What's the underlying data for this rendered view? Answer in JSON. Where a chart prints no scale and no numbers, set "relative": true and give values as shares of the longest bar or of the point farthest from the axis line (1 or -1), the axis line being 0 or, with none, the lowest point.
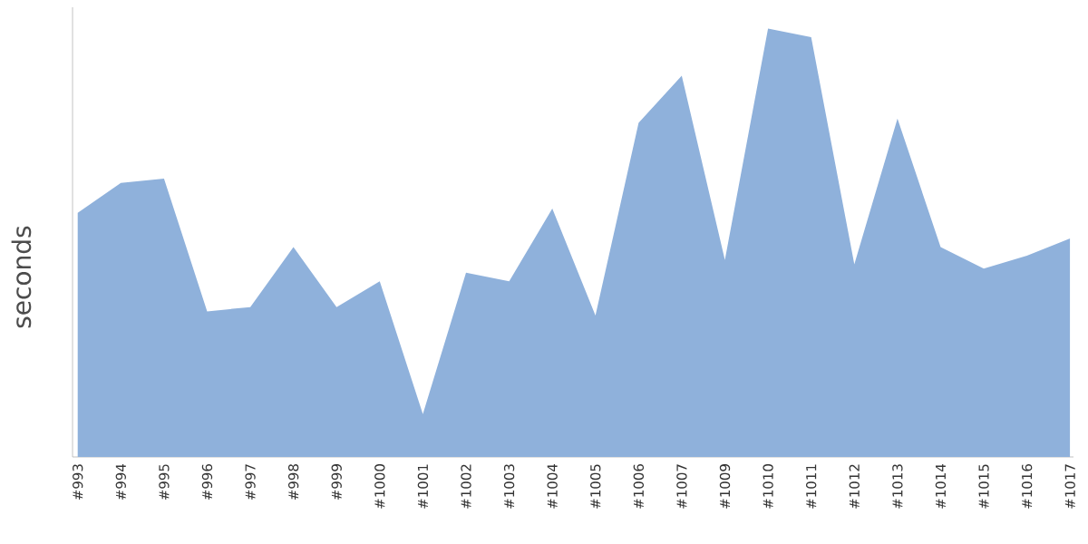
{
  "chart_data": {
    "type": "area",
    "ylabel": "seconds",
    "relative": true,
    "color": "#8fb1db",
    "categories": [
      "#993",
      "#994",
      "#995",
      "#996",
      "#997",
      "#998",
      "#999",
      "#1000",
      "#1001",
      "#1002",
      "#1003",
      "#1004",
      "#1005",
      "#1006",
      "#1007",
      "#1009",
      "#1010",
      "#1011",
      "#1012",
      "#1013",
      "#1014",
      "#1015",
      "#1016",
      "#1017"
    ],
    "values": [
      0.57,
      0.64,
      0.65,
      0.34,
      0.35,
      0.49,
      0.35,
      0.41,
      0.1,
      0.43,
      0.41,
      0.58,
      0.33,
      0.78,
      0.89,
      0.46,
      1,
      0.98,
      0.45,
      0.79,
      0.49,
      0.44,
      0.47,
      0.51
    ]
  }
}
